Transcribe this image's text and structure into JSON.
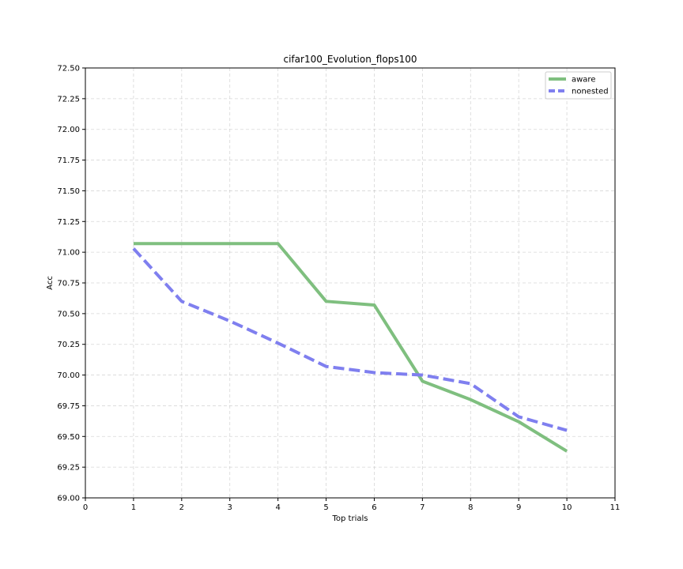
{
  "chart_data": {
    "type": "line",
    "title": "cifar100_Evolution_flops100",
    "xlabel": "Top trials",
    "ylabel": "Acc",
    "xlim": [
      0,
      11
    ],
    "ylim": [
      69.0,
      72.5
    ],
    "xticks": [
      "0",
      "1",
      "2",
      "3",
      "4",
      "5",
      "6",
      "7",
      "8",
      "9",
      "10",
      "11"
    ],
    "yticks": [
      "69.00",
      "69.25",
      "69.50",
      "69.75",
      "70.00",
      "70.25",
      "70.50",
      "70.75",
      "71.00",
      "71.25",
      "71.50",
      "71.75",
      "72.00",
      "72.25",
      "72.50"
    ],
    "grid": true,
    "legend_position": "top-right",
    "x": [
      1,
      2,
      3,
      4,
      5,
      6,
      7,
      8,
      9,
      10
    ],
    "series": [
      {
        "name": "aware",
        "color": "#7fbf7f",
        "style": "solid",
        "values": [
          71.07,
          71.07,
          71.07,
          71.07,
          70.6,
          70.57,
          69.95,
          69.8,
          69.62,
          69.38
        ]
      },
      {
        "name": "nonested",
        "color": "#7f7fef",
        "style": "dashed",
        "values": [
          71.03,
          70.6,
          70.44,
          70.26,
          70.07,
          70.02,
          70.0,
          69.93,
          69.66,
          69.55
        ]
      }
    ]
  }
}
